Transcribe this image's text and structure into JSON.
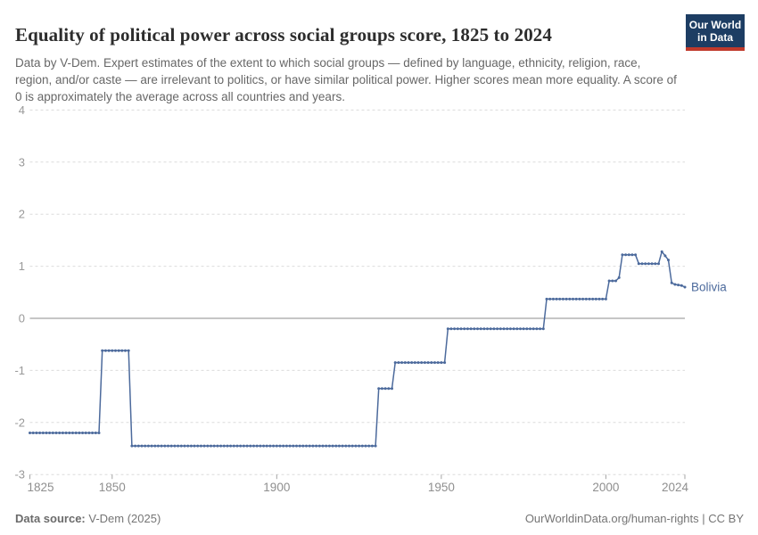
{
  "header": {
    "title": "Equality of political power across social groups score, 1825 to 2024",
    "subtitle": "Data by V-Dem. Expert estimates of the extent to which social groups — defined by language, ethnicity, religion, race, region, and/or caste — are irrelevant to politics, or have similar political power. Higher scores mean more equality. A score of 0 is approximately the average across all countries and years.",
    "logo": {
      "line1": "Our World",
      "line2": "in Data",
      "bg_color": "#1d3d63",
      "accent_color": "#c0392b"
    }
  },
  "footer": {
    "source_label": "Data source:",
    "source_value": " V-Dem (2025)",
    "link": "OurWorldinData.org/human-rights",
    "separator": " | ",
    "license": "CC BY"
  },
  "chart_data": {
    "type": "line",
    "title": "Equality of political power across social groups score, 1825 to 2024",
    "entity": "Bolivia",
    "line_color": "#4c6a9c",
    "grid": true,
    "xlim": [
      1825,
      2024
    ],
    "ylim": [
      -3,
      4
    ],
    "x_ticks": [
      1825,
      1850,
      1900,
      1950,
      2000,
      2024
    ],
    "y_ticks": [
      -3,
      -2,
      -1,
      0,
      1,
      2,
      3,
      4
    ],
    "axis_color": "#999999",
    "gridline_color": "#dcdcdc",
    "zero_line_color": "#8c8c8c",
    "series": [
      {
        "name": "Bolivia",
        "segments": [
          {
            "from": 1825,
            "to": 1846,
            "value": -2.2
          },
          {
            "from": 1847,
            "to": 1855,
            "value": -0.62
          },
          {
            "from": 1856,
            "to": 1930,
            "value": -2.45
          },
          {
            "from": 1931,
            "to": 1935,
            "value": -1.35
          },
          {
            "from": 1936,
            "to": 1951,
            "value": -0.85
          },
          {
            "from": 1952,
            "to": 1981,
            "value": -0.2
          },
          {
            "from": 1982,
            "to": 2000,
            "value": 0.37
          },
          {
            "from": 2001,
            "to": 2003,
            "value": 0.72
          },
          {
            "from": 2004,
            "to": 2004,
            "value": 0.78
          },
          {
            "from": 2005,
            "to": 2009,
            "value": 1.22
          },
          {
            "from": 2010,
            "to": 2016,
            "value": 1.05
          },
          {
            "from": 2017,
            "to": 2017,
            "value": 1.28
          },
          {
            "from": 2018,
            "to": 2018,
            "value": 1.2
          },
          {
            "from": 2019,
            "to": 2019,
            "value": 1.12
          },
          {
            "from": 2020,
            "to": 2020,
            "value": 0.68
          },
          {
            "from": 2021,
            "to": 2021,
            "value": 0.65
          },
          {
            "from": 2022,
            "to": 2022,
            "value": 0.64
          },
          {
            "from": 2023,
            "to": 2023,
            "value": 0.63
          },
          {
            "from": 2024,
            "to": 2024,
            "value": 0.6
          }
        ]
      }
    ]
  }
}
